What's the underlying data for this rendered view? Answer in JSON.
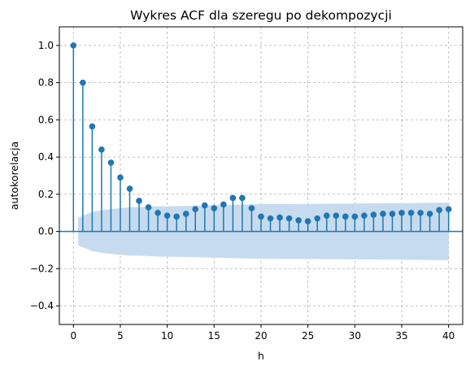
{
  "chart_data": {
    "type": "stem",
    "title": "Wykres ACF dla szeregu po dekompozycji",
    "xlabel": "h",
    "ylabel": "autokorelacja",
    "xlim": [
      -1.5,
      41.5
    ],
    "ylim": [
      -0.5,
      1.1
    ],
    "xticks": [
      0,
      5,
      10,
      15,
      20,
      25,
      30,
      35,
      40
    ],
    "xtick_labels": [
      "0",
      "5",
      "10",
      "15",
      "20",
      "25",
      "30",
      "35",
      "40"
    ],
    "yticks": [
      -0.4,
      -0.2,
      0.0,
      0.2,
      0.4,
      0.6,
      0.8,
      1.0
    ],
    "ytick_labels": [
      "−0.4",
      "−0.2",
      "0.0",
      "0.2",
      "0.4",
      "0.6",
      "0.8",
      "1.0"
    ],
    "grid": true,
    "lags": [
      0,
      1,
      2,
      3,
      4,
      5,
      6,
      7,
      8,
      9,
      10,
      11,
      12,
      13,
      14,
      15,
      16,
      17,
      18,
      19,
      20,
      21,
      22,
      23,
      24,
      25,
      26,
      27,
      28,
      29,
      30,
      31,
      32,
      33,
      34,
      35,
      36,
      37,
      38,
      39,
      40
    ],
    "values": [
      1.0,
      0.8,
      0.565,
      0.44,
      0.37,
      0.29,
      0.23,
      0.165,
      0.13,
      0.1,
      0.085,
      0.08,
      0.095,
      0.12,
      0.14,
      0.125,
      0.145,
      0.18,
      0.18,
      0.125,
      0.08,
      0.07,
      0.075,
      0.07,
      0.06,
      0.055,
      0.07,
      0.085,
      0.085,
      0.08,
      0.08,
      0.085,
      0.09,
      0.095,
      0.095,
      0.1,
      0.1,
      0.1,
      0.095,
      0.115,
      0.12
    ],
    "confidence_band": {
      "lags": [
        0.5,
        1,
        2,
        3,
        4,
        5,
        6,
        7,
        8,
        9,
        10,
        12,
        14,
        16,
        18,
        20,
        25,
        30,
        35,
        40
      ],
      "upper": [
        0.075,
        0.085,
        0.105,
        0.115,
        0.12,
        0.125,
        0.13,
        0.13,
        0.132,
        0.135,
        0.135,
        0.137,
        0.14,
        0.142,
        0.145,
        0.147,
        0.148,
        0.15,
        0.152,
        0.155
      ],
      "lower": [
        -0.075,
        -0.085,
        -0.105,
        -0.115,
        -0.12,
        -0.125,
        -0.13,
        -0.13,
        -0.132,
        -0.135,
        -0.135,
        -0.137,
        -0.14,
        -0.142,
        -0.145,
        -0.147,
        -0.148,
        -0.15,
        -0.152,
        -0.155
      ]
    },
    "colors": {
      "stem": "#1f77b4",
      "band": "#c6dbee",
      "grid": "#b0b0b0",
      "zero_line": "#1f77b4"
    }
  }
}
